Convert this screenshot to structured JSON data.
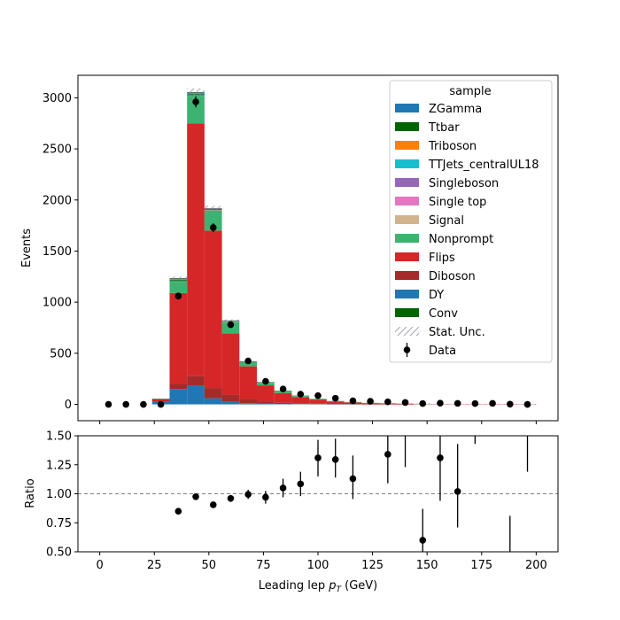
{
  "chart_data": [
    {
      "type": "bar",
      "subtype": "stacked-histogram",
      "xlabel": "",
      "ylabel": "Events",
      "xlim": [
        -10,
        210
      ],
      "ylim": [
        -160,
        3220
      ],
      "x_ticks": [
        0,
        25,
        50,
        75,
        100,
        125,
        150,
        175,
        200
      ],
      "y_ticks": [
        0,
        500,
        1000,
        1500,
        2000,
        2500,
        3000
      ],
      "x_tick_labels_visible": false,
      "bin_width": 8,
      "bins_x_low": [
        24,
        32,
        40,
        48,
        56,
        64,
        72,
        80,
        88,
        96,
        104,
        112,
        120,
        128,
        136,
        144,
        152,
        160,
        168,
        176,
        184,
        192
      ],
      "series": [
        {
          "name": "DY",
          "color": "#1f77b4",
          "values": [
            30,
            150,
            180,
            60,
            25,
            12,
            6,
            4,
            3,
            2,
            1,
            1,
            0,
            0,
            0,
            0,
            0,
            0,
            0,
            0,
            0,
            0
          ]
        },
        {
          "name": "Diboson",
          "color": "#a52a2a",
          "values": [
            5,
            50,
            100,
            100,
            70,
            40,
            20,
            12,
            8,
            5,
            3,
            2,
            1,
            1,
            1,
            0,
            0,
            0,
            0,
            0,
            0,
            0
          ]
        },
        {
          "name": "Flips",
          "color": "#d62728",
          "values": [
            15,
            890,
            2470,
            1540,
            600,
            320,
            160,
            95,
            60,
            40,
            25,
            16,
            11,
            8,
            5,
            4,
            3,
            2,
            2,
            1,
            1,
            1
          ]
        },
        {
          "name": "Nonprompt",
          "color": "#3cb371",
          "values": [
            3,
            110,
            270,
            195,
            110,
            40,
            25,
            18,
            11,
            7,
            4,
            3,
            2,
            1,
            1,
            1,
            0,
            0,
            0,
            0,
            0,
            0
          ]
        },
        {
          "name": "Signal",
          "color": "#d2b48c",
          "values": [
            0,
            5,
            5,
            5,
            5,
            3,
            3,
            3,
            2,
            2,
            2,
            2,
            1,
            1,
            1,
            1,
            0,
            0,
            0,
            0,
            0,
            0
          ]
        },
        {
          "name": "Conv",
          "color": "#006400",
          "values": [
            1,
            10,
            10,
            8,
            4,
            2,
            1,
            1,
            1,
            0,
            0,
            0,
            0,
            0,
            0,
            0,
            0,
            0,
            0,
            0,
            0,
            0
          ]
        },
        {
          "name": "ZGamma",
          "color": "#1f77b4",
          "values": [
            1,
            5,
            5,
            3,
            2,
            1,
            1,
            0,
            0,
            0,
            0,
            0,
            0,
            0,
            0,
            0,
            0,
            0,
            0,
            0,
            0,
            0
          ]
        },
        {
          "name": "Singleboson",
          "color": "#9467bd",
          "values": [
            1,
            10,
            10,
            5,
            3,
            2,
            1,
            0,
            0,
            0,
            0,
            0,
            0,
            0,
            0,
            0,
            0,
            0,
            0,
            0,
            0,
            0
          ]
        },
        {
          "name": "Ttbar",
          "color": "#006400",
          "values": [
            0,
            5,
            5,
            3,
            2,
            1,
            1,
            1,
            0,
            0,
            0,
            0,
            0,
            0,
            0,
            0,
            0,
            0,
            0,
            0,
            0,
            0
          ]
        }
      ],
      "stat_unc_fraction": 0.012,
      "data_points": {
        "name": "Data",
        "x": [
          4,
          12,
          20,
          28,
          36,
          44,
          52,
          60,
          68,
          76,
          84,
          92,
          100,
          108,
          116,
          124,
          132,
          140,
          148,
          156,
          164,
          172,
          180,
          188,
          196
        ],
        "y": [
          0,
          0,
          0,
          0,
          1060,
          2960,
          1730,
          780,
          425,
          225,
          150,
          100,
          85,
          60,
          35,
          30,
          25,
          18,
          8,
          12,
          10,
          8,
          10,
          2,
          0
        ],
        "yerr": [
          0,
          0,
          0,
          0,
          33,
          54,
          42,
          28,
          21,
          15,
          12,
          10,
          9,
          8,
          6,
          5.5,
          5,
          4.2,
          2.8,
          3.5,
          3.2,
          2.8,
          3.2,
          1.4,
          0
        ]
      },
      "legend_title": "sample",
      "legend_entries": [
        {
          "label": "ZGamma",
          "color": "#1f77b4",
          "kind": "patch"
        },
        {
          "label": "Ttbar",
          "color": "#006400",
          "kind": "patch"
        },
        {
          "label": "Triboson",
          "color": "#ff7f0e",
          "kind": "patch"
        },
        {
          "label": "TTJets_centralUL18",
          "color": "#17becf",
          "kind": "patch"
        },
        {
          "label": "Singleboson",
          "color": "#9467bd",
          "kind": "patch"
        },
        {
          "label": "Single top",
          "color": "#e377c2",
          "kind": "patch"
        },
        {
          "label": "Signal",
          "color": "#d2b48c",
          "kind": "patch"
        },
        {
          "label": "Nonprompt",
          "color": "#3cb371",
          "kind": "patch"
        },
        {
          "label": "Flips",
          "color": "#d62728",
          "kind": "patch"
        },
        {
          "label": "Diboson",
          "color": "#a52a2a",
          "kind": "patch"
        },
        {
          "label": "DY",
          "color": "#1f77b4",
          "kind": "patch"
        },
        {
          "label": "Conv",
          "color": "#006400",
          "kind": "patch"
        },
        {
          "label": "Stat. Unc.",
          "color": "#888888",
          "kind": "hatch"
        },
        {
          "label": "Data",
          "color": "#000000",
          "kind": "errorbar"
        }
      ],
      "legend_position": "top-right",
      "grid": false
    },
    {
      "type": "scatter",
      "subtype": "ratio",
      "xlabel_prefix": "Leading lep ",
      "xlabel_symbol": "p",
      "xlabel_subscript": "T",
      "xlabel_suffix": " (GeV)",
      "ylabel": "Ratio",
      "xlim": [
        -10,
        210
      ],
      "ylim": [
        0.5,
        1.5
      ],
      "x_ticks": [
        0,
        25,
        50,
        75,
        100,
        125,
        150,
        175,
        200
      ],
      "x_tick_labels": [
        "0",
        "25",
        "50",
        "75",
        "100",
        "125",
        "150",
        "175",
        "200"
      ],
      "y_ticks": [
        0.5,
        0.75,
        1.0,
        1.25,
        1.5
      ],
      "y_tick_labels": [
        "0.50",
        "0.75",
        "1.00",
        "1.25",
        "1.50"
      ],
      "reference_line": 1.0,
      "points": {
        "x": [
          36,
          44,
          52,
          60,
          68,
          76,
          84,
          92,
          100,
          108,
          116,
          132,
          148,
          156,
          164
        ],
        "y": [
          0.85,
          0.975,
          0.905,
          0.96,
          0.995,
          0.97,
          1.05,
          1.085,
          1.31,
          1.295,
          1.13,
          1.34,
          0.6,
          1.31,
          1.02
        ],
        "ylo": [
          0.83,
          0.955,
          0.885,
          0.93,
          0.955,
          0.915,
          0.97,
          0.98,
          1.15,
          1.14,
          0.955,
          1.09,
          0.34,
          0.94,
          0.71
        ],
        "yhi": [
          0.87,
          0.995,
          0.925,
          0.99,
          1.035,
          1.025,
          1.13,
          1.19,
          1.465,
          1.475,
          1.33,
          1.6,
          0.87,
          1.65,
          1.43
        ]
      },
      "offscale_segments": [
        {
          "x": 140,
          "ylo": 1.23,
          "yhi": 1.5
        },
        {
          "x": 172,
          "ylo": 1.43,
          "yhi": 1.5
        },
        {
          "x": 188,
          "ylo": 0.5,
          "yhi": 0.81
        },
        {
          "x": 196,
          "ylo": 1.19,
          "yhi": 1.5
        }
      ]
    }
  ]
}
